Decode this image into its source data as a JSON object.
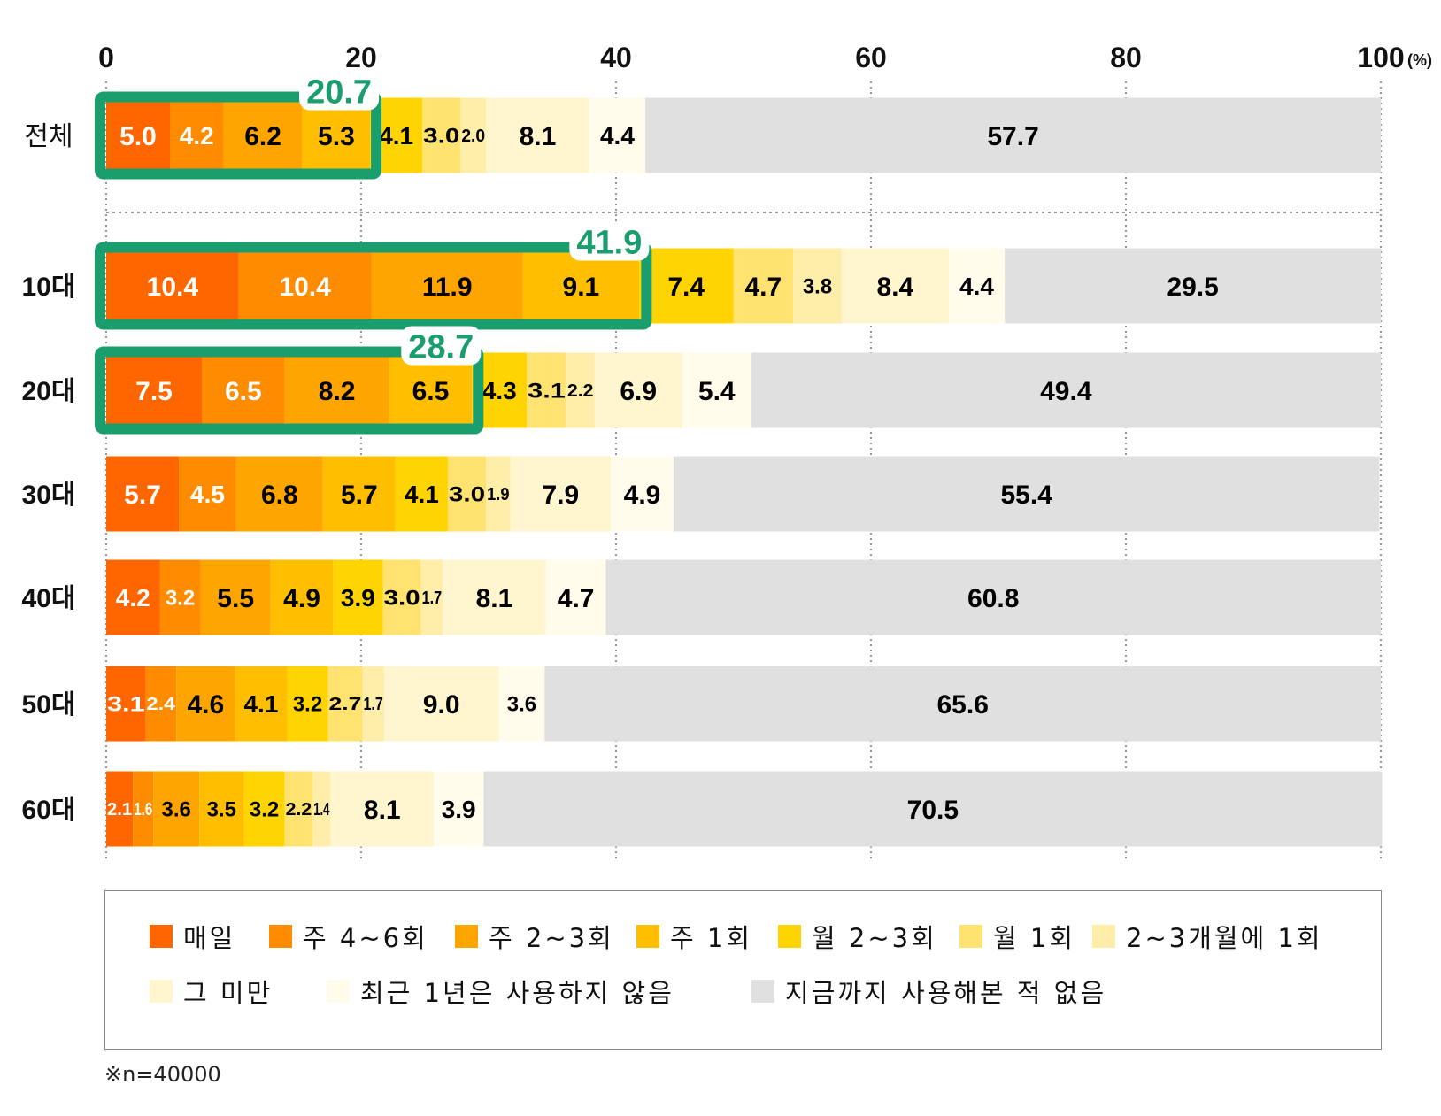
{
  "chart_data": {
    "type": "bar",
    "orientation": "horizontal",
    "stacked": true,
    "unit_label": "(%)",
    "x_ticks": [
      "0",
      "20",
      "40",
      "60",
      "80",
      "100"
    ],
    "xlim": [
      0,
      100
    ],
    "categories": [
      "전체",
      "10대",
      "20대",
      "30대",
      "40대",
      "50대",
      "60대"
    ],
    "series": [
      {
        "name": "매일",
        "color": "#FF6600",
        "values": [
          5.0,
          10.4,
          7.5,
          5.7,
          4.2,
          3.1,
          2.1
        ],
        "label_color": "#ffffff"
      },
      {
        "name": "주 4~6회",
        "color": "#FF8C00",
        "values": [
          4.2,
          10.4,
          6.5,
          4.5,
          3.2,
          2.4,
          1.6
        ],
        "label_color": "#ffffff"
      },
      {
        "name": "주 2~3회",
        "color": "#FFA500",
        "values": [
          6.2,
          11.9,
          8.2,
          6.8,
          5.5,
          4.6,
          3.6
        ],
        "label_color": "#000000"
      },
      {
        "name": "주 1회",
        "color": "#FFBF00",
        "values": [
          5.3,
          9.1,
          6.5,
          5.7,
          4.9,
          4.1,
          3.5
        ],
        "label_color": "#000000"
      },
      {
        "name": "월 2~3회",
        "color": "#FFD400",
        "values": [
          4.1,
          7.4,
          4.3,
          4.1,
          3.9,
          3.2,
          3.2
        ],
        "label_color": "#000000"
      },
      {
        "name": "월 1회",
        "color": "#FFE270",
        "values": [
          3.0,
          4.7,
          3.1,
          3.0,
          3.0,
          2.7,
          2.2
        ],
        "label_color": "#000000"
      },
      {
        "name": "2~3개월에 1회",
        "color": "#FFEDAA",
        "values": [
          2.0,
          3.8,
          2.2,
          1.9,
          1.7,
          1.7,
          1.4
        ],
        "label_color": "#000000"
      },
      {
        "name": "그 미만",
        "color": "#FFF5CF",
        "values": [
          8.1,
          8.4,
          6.9,
          7.9,
          8.1,
          9.0,
          8.1
        ],
        "label_color": "#000000"
      },
      {
        "name": "최근 1년은 사용하지 않음",
        "color": "#FFFCEC",
        "values": [
          4.4,
          4.4,
          5.4,
          4.9,
          4.7,
          3.6,
          3.9
        ],
        "label_color": "#000000"
      },
      {
        "name": "지금까지 사용해본 적 없음",
        "color": "#E0E0E0",
        "values": [
          57.7,
          29.5,
          49.4,
          55.4,
          60.8,
          65.6,
          70.5
        ],
        "label_color": "#000000"
      }
    ],
    "value_labels": [
      [
        "5.0",
        "4.2",
        "6.2",
        "5.3",
        "4.1",
        "3.0",
        "2.0",
        "8.1",
        "4.4",
        "57.7"
      ],
      [
        "10.4",
        "10.4",
        "11.9",
        "9.1",
        "7.4",
        "4.7",
        "3.8",
        "8.4",
        "4.4",
        "29.5"
      ],
      [
        "7.5",
        "6.5",
        "8.2",
        "6.5",
        "4.3",
        "3.1",
        "2.2",
        "6.9",
        "5.4",
        "49.4"
      ],
      [
        "5.7",
        "4.5",
        "6.8",
        "5.7",
        "4.1",
        "3.0",
        "1.9",
        "7.9",
        "4.9",
        "55.4"
      ],
      [
        "4.2",
        "3.2",
        "5.5",
        "4.9",
        "3.9",
        "3.0",
        "1.7",
        "8.1",
        "4.7",
        "60.8"
      ],
      [
        "3.1",
        "2.4",
        "4.6",
        "4.1",
        "3.2",
        "2.7",
        "1.7",
        "9.0",
        "3.6",
        "65.6"
      ],
      [
        "2.1",
        "1.6",
        "3.6",
        "3.5",
        "3.2",
        "2.2",
        "1.4",
        "8.1",
        "3.9",
        "70.5"
      ]
    ],
    "highlights": [
      {
        "category": "전체",
        "value": 20.7,
        "label": "20.7"
      },
      {
        "category": "10대",
        "value": 41.9,
        "label": "41.9"
      },
      {
        "category": "20대",
        "value": 28.7,
        "label": "28.7"
      }
    ],
    "highlight_color": "#1A9E6E",
    "grid": "dotted vertical",
    "legend_position": "bottom"
  },
  "legend": {
    "items": [
      "매일",
      "주 4~6회",
      "주 2~3회",
      "주 1회",
      "월 2~3회",
      "월 1회",
      "2~3개월에 1회",
      "그 미만",
      "최근 1년은 사용하지 않음",
      "지금까지 사용해본 적 없음"
    ]
  },
  "footnote": "※n=40000"
}
